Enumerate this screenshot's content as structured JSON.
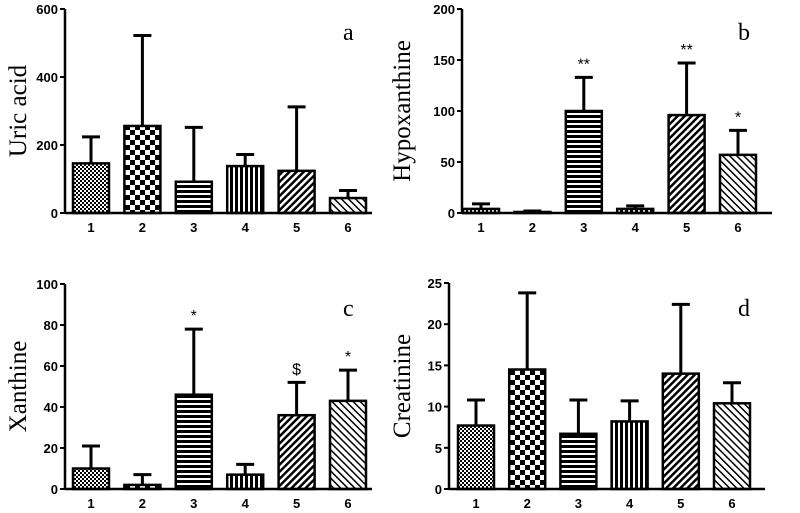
{
  "chart_data": [
    {
      "type": "bar",
      "panel_label": "a",
      "ylabel": "Uric acid",
      "categories": [
        "1",
        "2",
        "3",
        "4",
        "5",
        "6"
      ],
      "values": [
        146,
        256,
        92,
        138,
        124,
        44
      ],
      "error_upper": [
        224,
        522,
        252,
        172,
        312,
        66
      ],
      "ylim": [
        0,
        600
      ],
      "yticks": [
        0,
        200,
        400,
        600
      ],
      "annotations": [
        "",
        "",
        "",
        "",
        "",
        ""
      ]
    },
    {
      "type": "bar",
      "panel_label": "b",
      "ylabel": "Hypoxanthine",
      "categories": [
        "1",
        "2",
        "3",
        "4",
        "5",
        "6"
      ],
      "values": [
        4,
        1,
        100,
        4,
        96,
        57
      ],
      "error_upper": [
        9,
        2,
        133,
        7,
        147,
        81
      ],
      "ylim": [
        0,
        200
      ],
      "yticks": [
        0,
        50,
        100,
        150,
        200
      ],
      "annotations": [
        "",
        "",
        "**",
        "",
        "**",
        "*"
      ]
    },
    {
      "type": "bar",
      "panel_label": "c",
      "ylabel": "Xanthine",
      "categories": [
        "1",
        "2",
        "3",
        "4",
        "5",
        "6"
      ],
      "values": [
        10,
        2,
        46,
        7,
        36,
        43
      ],
      "error_upper": [
        21,
        7,
        78,
        12,
        52,
        58
      ],
      "ylim": [
        0,
        100
      ],
      "yticks": [
        0,
        20,
        40,
        60,
        80,
        100
      ],
      "annotations": [
        "",
        "",
        "*",
        "",
        "$",
        "*"
      ]
    },
    {
      "type": "bar",
      "panel_label": "d",
      "ylabel": "Creatinine",
      "categories": [
        "1",
        "2",
        "3",
        "4",
        "5",
        "6"
      ],
      "values": [
        7.7,
        14.5,
        6.7,
        8.2,
        14.0,
        10.4
      ],
      "error_upper": [
        10.8,
        23.8,
        10.8,
        10.7,
        22.4,
        12.9
      ],
      "ylim": [
        0,
        25
      ],
      "yticks": [
        0,
        5,
        10,
        15,
        20,
        25
      ],
      "annotations": [
        "",
        "",
        "",
        "",
        "",
        ""
      ]
    }
  ],
  "bar_patterns": [
    "fine-crosshatch",
    "checkerboard",
    "horizontal-lines",
    "vertical-lines",
    "diagonal-thick",
    "diagonal-thin"
  ],
  "colors": {
    "ink": "#000000",
    "background": "#ffffff"
  }
}
